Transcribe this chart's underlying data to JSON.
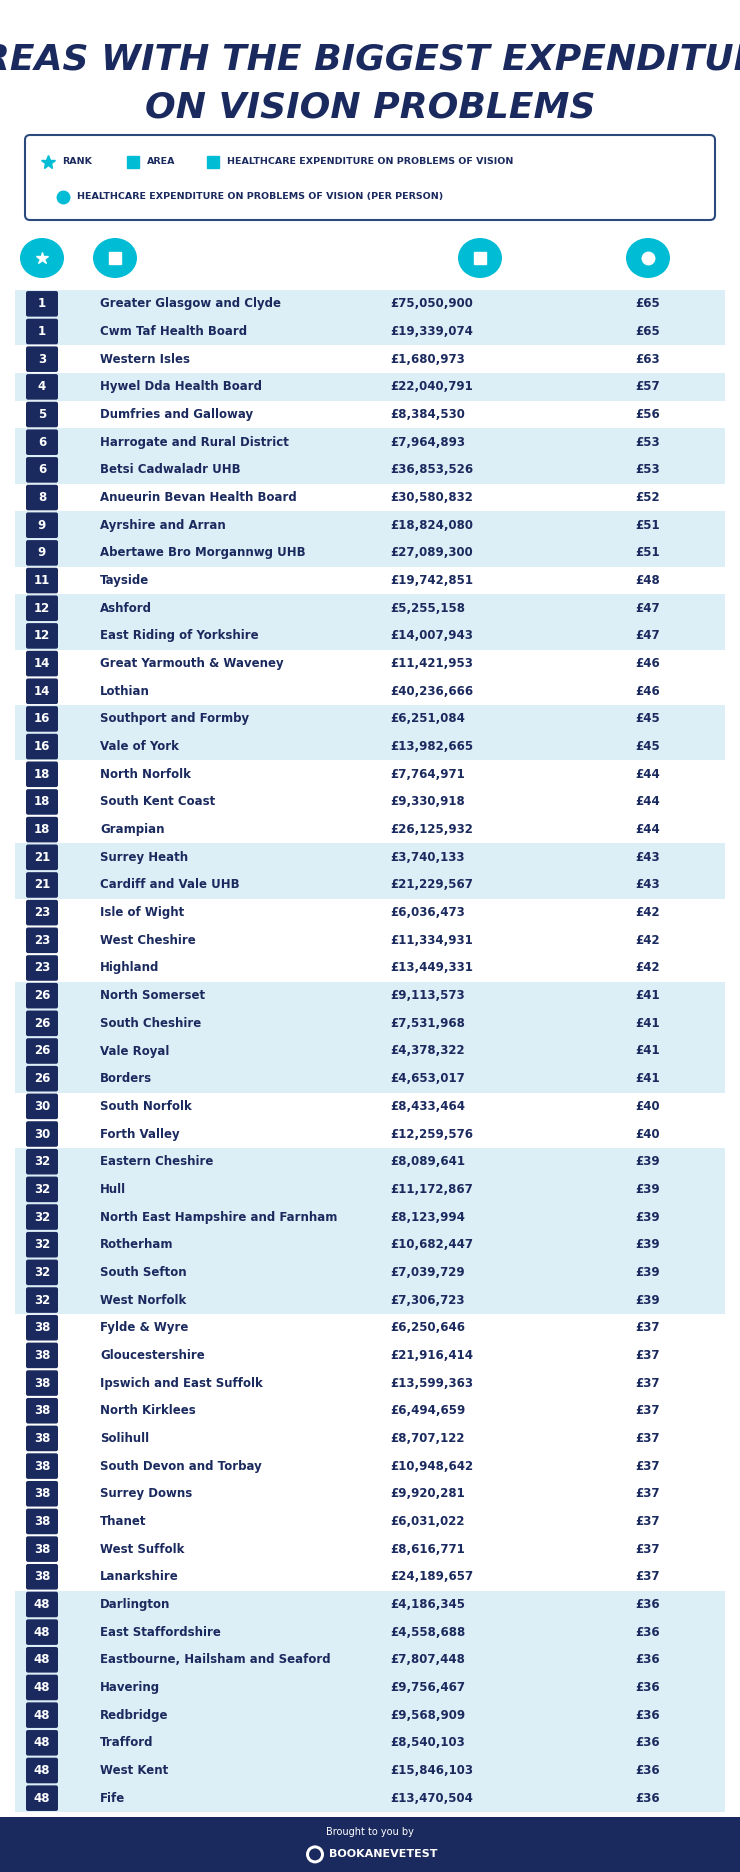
{
  "title_line1": "AREAS WITH THE BIGGEST EXPENDITURE",
  "title_line2": "ON VISION PROBLEMS",
  "title_color": "#1a2a5e",
  "bg_color": "#ffffff",
  "legend_border_color": "#2a4a7e",
  "icon_color": "#00bcd4",
  "row_bg_alt": "#dceef6",
  "row_bg_main": "#ffffff",
  "rank_bg_color": "#1a2a5e",
  "rank_text_color": "#ffffff",
  "area_text_color": "#1a2a5e",
  "value_text_color": "#1a2a5e",
  "rows": [
    {
      "rank": "1",
      "area": "Greater Glasgow and Clyde",
      "expenditure": "£75,050,900",
      "per_person": "£65",
      "alt": true
    },
    {
      "rank": "1",
      "area": "Cwm Taf Health Board",
      "expenditure": "£19,339,074",
      "per_person": "£65",
      "alt": true
    },
    {
      "rank": "3",
      "area": "Western Isles",
      "expenditure": "£1,680,973",
      "per_person": "£63",
      "alt": false
    },
    {
      "rank": "4",
      "area": "Hywel Dda Health Board",
      "expenditure": "£22,040,791",
      "per_person": "£57",
      "alt": true
    },
    {
      "rank": "5",
      "area": "Dumfries and Galloway",
      "expenditure": "£8,384,530",
      "per_person": "£56",
      "alt": false
    },
    {
      "rank": "6",
      "area": "Harrogate and Rural District",
      "expenditure": "£7,964,893",
      "per_person": "£53",
      "alt": true
    },
    {
      "rank": "6",
      "area": "Betsi Cadwaladr UHB",
      "expenditure": "£36,853,526",
      "per_person": "£53",
      "alt": true
    },
    {
      "rank": "8",
      "area": "Anueurin Bevan Health Board",
      "expenditure": "£30,580,832",
      "per_person": "£52",
      "alt": false
    },
    {
      "rank": "9",
      "area": "Ayrshire and Arran",
      "expenditure": "£18,824,080",
      "per_person": "£51",
      "alt": true
    },
    {
      "rank": "9",
      "area": "Abertawe Bro Morgannwg UHB",
      "expenditure": "£27,089,300",
      "per_person": "£51",
      "alt": true
    },
    {
      "rank": "11",
      "area": "Tayside",
      "expenditure": "£19,742,851",
      "per_person": "£48",
      "alt": false
    },
    {
      "rank": "12",
      "area": "Ashford",
      "expenditure": "£5,255,158",
      "per_person": "£47",
      "alt": true
    },
    {
      "rank": "12",
      "area": "East Riding of Yorkshire",
      "expenditure": "£14,007,943",
      "per_person": "£47",
      "alt": true
    },
    {
      "rank": "14",
      "area": "Great Yarmouth & Waveney",
      "expenditure": "£11,421,953",
      "per_person": "£46",
      "alt": false
    },
    {
      "rank": "14",
      "area": "Lothian",
      "expenditure": "£40,236,666",
      "per_person": "£46",
      "alt": false
    },
    {
      "rank": "16",
      "area": "Southport and Formby",
      "expenditure": "£6,251,084",
      "per_person": "£45",
      "alt": true
    },
    {
      "rank": "16",
      "area": "Vale of York",
      "expenditure": "£13,982,665",
      "per_person": "£45",
      "alt": true
    },
    {
      "rank": "18",
      "area": "North Norfolk",
      "expenditure": "£7,764,971",
      "per_person": "£44",
      "alt": false
    },
    {
      "rank": "18",
      "area": "South Kent Coast",
      "expenditure": "£9,330,918",
      "per_person": "£44",
      "alt": false
    },
    {
      "rank": "18",
      "area": "Grampian",
      "expenditure": "£26,125,932",
      "per_person": "£44",
      "alt": false
    },
    {
      "rank": "21",
      "area": "Surrey Heath",
      "expenditure": "£3,740,133",
      "per_person": "£43",
      "alt": true
    },
    {
      "rank": "21",
      "area": "Cardiff and Vale UHB",
      "expenditure": "£21,229,567",
      "per_person": "£43",
      "alt": true
    },
    {
      "rank": "23",
      "area": "Isle of Wight",
      "expenditure": "£6,036,473",
      "per_person": "£42",
      "alt": false
    },
    {
      "rank": "23",
      "area": "West Cheshire",
      "expenditure": "£11,334,931",
      "per_person": "£42",
      "alt": false
    },
    {
      "rank": "23",
      "area": "Highland",
      "expenditure": "£13,449,331",
      "per_person": "£42",
      "alt": false
    },
    {
      "rank": "26",
      "area": "North Somerset",
      "expenditure": "£9,113,573",
      "per_person": "£41",
      "alt": true
    },
    {
      "rank": "26",
      "area": "South Cheshire",
      "expenditure": "£7,531,968",
      "per_person": "£41",
      "alt": true
    },
    {
      "rank": "26",
      "area": "Vale Royal",
      "expenditure": "£4,378,322",
      "per_person": "£41",
      "alt": true
    },
    {
      "rank": "26",
      "area": "Borders",
      "expenditure": "£4,653,017",
      "per_person": "£41",
      "alt": true
    },
    {
      "rank": "30",
      "area": "South Norfolk",
      "expenditure": "£8,433,464",
      "per_person": "£40",
      "alt": false
    },
    {
      "rank": "30",
      "area": "Forth Valley",
      "expenditure": "£12,259,576",
      "per_person": "£40",
      "alt": false
    },
    {
      "rank": "32",
      "area": "Eastern Cheshire",
      "expenditure": "£8,089,641",
      "per_person": "£39",
      "alt": true
    },
    {
      "rank": "32",
      "area": "Hull",
      "expenditure": "£11,172,867",
      "per_person": "£39",
      "alt": true
    },
    {
      "rank": "32",
      "area": "North East Hampshire and Farnham",
      "expenditure": "£8,123,994",
      "per_person": "£39",
      "alt": true
    },
    {
      "rank": "32",
      "area": "Rotherham",
      "expenditure": "£10,682,447",
      "per_person": "£39",
      "alt": true
    },
    {
      "rank": "32",
      "area": "South Sefton",
      "expenditure": "£7,039,729",
      "per_person": "£39",
      "alt": true
    },
    {
      "rank": "32",
      "area": "West Norfolk",
      "expenditure": "£7,306,723",
      "per_person": "£39",
      "alt": true
    },
    {
      "rank": "38",
      "area": "Fylde & Wyre",
      "expenditure": "£6,250,646",
      "per_person": "£37",
      "alt": false
    },
    {
      "rank": "38",
      "area": "Gloucestershire",
      "expenditure": "£21,916,414",
      "per_person": "£37",
      "alt": false
    },
    {
      "rank": "38",
      "area": "Ipswich and East Suffolk",
      "expenditure": "£13,599,363",
      "per_person": "£37",
      "alt": false
    },
    {
      "rank": "38",
      "area": "North Kirklees",
      "expenditure": "£6,494,659",
      "per_person": "£37",
      "alt": false
    },
    {
      "rank": "38",
      "area": "Solihull",
      "expenditure": "£8,707,122",
      "per_person": "£37",
      "alt": false
    },
    {
      "rank": "38",
      "area": "South Devon and Torbay",
      "expenditure": "£10,948,642",
      "per_person": "£37",
      "alt": false
    },
    {
      "rank": "38",
      "area": "Surrey Downs",
      "expenditure": "£9,920,281",
      "per_person": "£37",
      "alt": false
    },
    {
      "rank": "38",
      "area": "Thanet",
      "expenditure": "£6,031,022",
      "per_person": "£37",
      "alt": false
    },
    {
      "rank": "38",
      "area": "West Suffolk",
      "expenditure": "£8,616,771",
      "per_person": "£37",
      "alt": false
    },
    {
      "rank": "38",
      "area": "Lanarkshire",
      "expenditure": "£24,189,657",
      "per_person": "£37",
      "alt": false
    },
    {
      "rank": "48",
      "area": "Darlington",
      "expenditure": "£4,186,345",
      "per_person": "£36",
      "alt": true
    },
    {
      "rank": "48",
      "area": "East Staffordshire",
      "expenditure": "£4,558,688",
      "per_person": "£36",
      "alt": true
    },
    {
      "rank": "48",
      "area": "Eastbourne, Hailsham and Seaford",
      "expenditure": "£7,807,448",
      "per_person": "£36",
      "alt": true
    },
    {
      "rank": "48",
      "area": "Havering",
      "expenditure": "£9,756,467",
      "per_person": "£36",
      "alt": true
    },
    {
      "rank": "48",
      "area": "Redbridge",
      "expenditure": "£9,568,909",
      "per_person": "£36",
      "alt": true
    },
    {
      "rank": "48",
      "area": "Trafford",
      "expenditure": "£8,540,103",
      "per_person": "£36",
      "alt": true
    },
    {
      "rank": "48",
      "area": "West Kent",
      "expenditure": "£15,846,103",
      "per_person": "£36",
      "alt": true
    },
    {
      "rank": "48",
      "area": "Fife",
      "expenditure": "£13,470,504",
      "per_person": "£36",
      "alt": true
    }
  ],
  "footer_text": "Brought to you by",
  "footer_brand": "BOOKANEVETEST",
  "footer_bg": "#1a2a5e",
  "title_fontsize": 26,
  "legend_fontsize": 6.8,
  "row_fontsize": 8.5,
  "rank_fontsize": 8.5
}
